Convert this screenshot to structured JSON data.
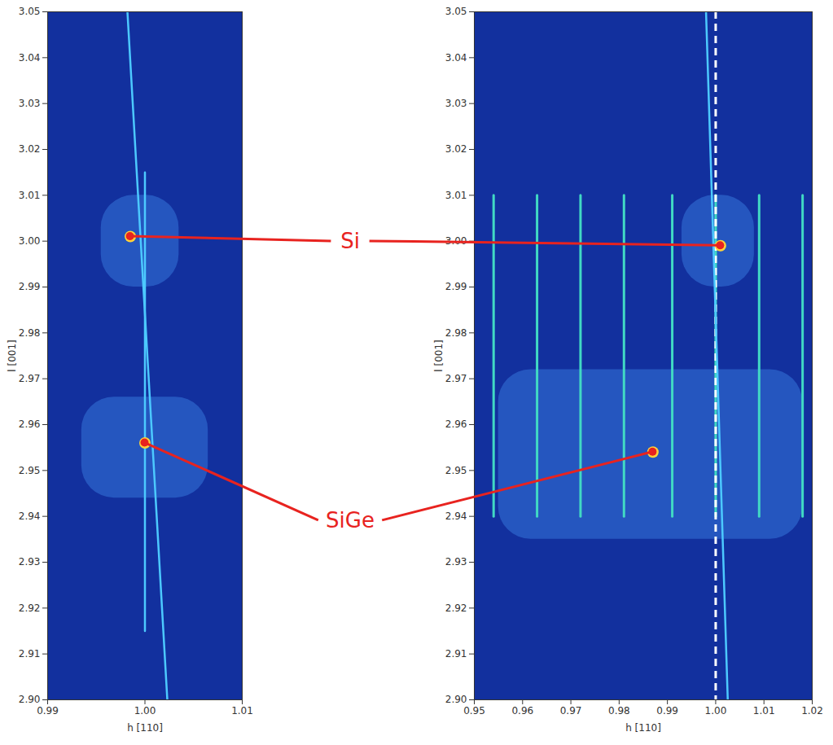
{
  "chart_data": [
    {
      "type": "scatter",
      "xlabel": "h [110]",
      "ylabel": "l [001]",
      "xlim": [
        0.99,
        1.01
      ],
      "xticks": [
        0.99,
        {
          "value": 1.0,
          "label": "1.00"
        },
        1.01
      ],
      "ylim": [
        2.9,
        3.05
      ],
      "yticks": [
        {
          "value": 2.9,
          "label": "2.90"
        },
        2.91,
        2.92,
        2.93,
        2.94,
        2.95,
        2.96,
        2.97,
        2.98,
        2.99,
        {
          "value": 3.0,
          "label": "3.00"
        },
        3.01,
        3.02,
        3.03,
        3.04,
        3.05
      ],
      "diffuse": [
        {
          "x": [
            0.9955,
            1.0035
          ],
          "y": [
            2.99,
            3.01
          ]
        },
        {
          "x": [
            0.9935,
            1.0065
          ],
          "y": [
            2.944,
            2.966
          ]
        }
      ],
      "streaks": [
        {
          "x": [
            0.9982,
            1.0023
          ],
          "y": [
            3.05,
            2.9
          ]
        },
        {
          "x": [
            1.0,
            1.0
          ],
          "y": [
            2.915,
            3.015
          ]
        }
      ],
      "peaks": [
        {
          "name": "Si",
          "x": 0.9985,
          "y": 3.001
        },
        {
          "name": "SiGe",
          "x": 1.0,
          "y": 2.956
        }
      ]
    },
    {
      "type": "scatter",
      "xlabel": "h [110]",
      "ylabel": "l [001]",
      "xlim": [
        0.95,
        1.02
      ],
      "xticks": [
        0.95,
        0.96,
        0.97,
        0.98,
        0.99,
        {
          "value": 1.0,
          "label": "1.00"
        },
        1.01,
        1.02
      ],
      "ylim": [
        2.9,
        3.05
      ],
      "yticks": [
        {
          "value": 2.9,
          "label": "2.90"
        },
        2.91,
        2.92,
        2.93,
        2.94,
        2.95,
        2.96,
        2.97,
        2.98,
        2.99,
        {
          "value": 3.0,
          "label": "3.00"
        },
        3.01,
        3.02,
        3.03,
        3.04,
        3.05
      ],
      "diffuse": [
        {
          "x": [
            0.993,
            1.008
          ],
          "y": [
            2.99,
            3.01
          ]
        },
        {
          "x": [
            0.955,
            1.018
          ],
          "y": [
            2.935,
            2.972
          ]
        }
      ],
      "streaks": [
        {
          "x": [
            0.998,
            1.0025
          ],
          "y": [
            3.05,
            2.9
          ]
        }
      ],
      "rods": {
        "x": [
          0.954,
          0.963,
          0.972,
          0.981,
          0.991,
          1.0,
          1.009,
          1.018
        ],
        "y": [
          2.94,
          3.01
        ]
      },
      "reference": {
        "x": 1.0,
        "line_style": "dashed",
        "color": "#ffffff"
      },
      "peaks": [
        {
          "name": "Si",
          "x": 1.001,
          "y": 2.999
        },
        {
          "name": "SiGe",
          "x": 0.987,
          "y": 2.954
        }
      ]
    }
  ],
  "annotations": [
    {
      "text": "Si",
      "color": "#e8231f"
    },
    {
      "text": "SiGe",
      "color": "#e8231f"
    }
  ]
}
